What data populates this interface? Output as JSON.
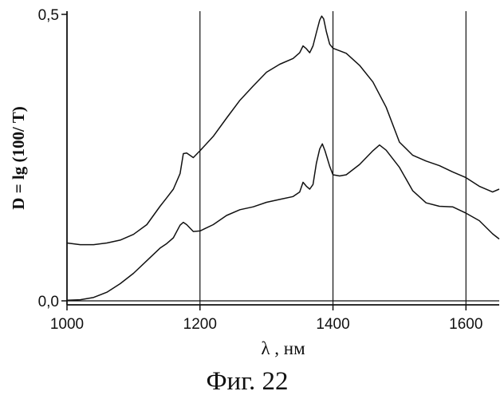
{
  "chart_data": {
    "type": "line",
    "title": "",
    "caption": "Фиг. 22",
    "xlabel": "λ , нм",
    "ylabel": "D = lg (100/ T)",
    "xlim": [
      1000,
      1650
    ],
    "ylim": [
      0,
      0.5
    ],
    "x_ticks": [
      1000,
      1200,
      1400,
      1600
    ],
    "x_tick_labels": [
      "1000",
      "1200",
      "1400",
      "1600"
    ],
    "y_ticks": [
      0,
      0.5
    ],
    "y_tick_labels": [
      "0,0",
      "0,5"
    ],
    "vertical_gridlines": [
      1200,
      1400,
      1600
    ],
    "grid": true,
    "line_color": "#111111",
    "series": [
      {
        "x": [
          1000,
          1020,
          1040,
          1060,
          1080,
          1100,
          1120,
          1140,
          1150,
          1160,
          1170,
          1175,
          1180,
          1190,
          1200,
          1220,
          1240,
          1260,
          1280,
          1300,
          1320,
          1340,
          1350,
          1355,
          1360,
          1365,
          1370,
          1375,
          1380,
          1383,
          1386,
          1390,
          1395,
          1400,
          1420,
          1440,
          1460,
          1480,
          1500,
          1520,
          1540,
          1560,
          1580,
          1600,
          1620,
          1640,
          1650
        ],
        "y": [
          0.101,
          0.098,
          0.098,
          0.101,
          0.106,
          0.116,
          0.133,
          0.165,
          0.18,
          0.195,
          0.222,
          0.257,
          0.258,
          0.25,
          0.262,
          0.287,
          0.319,
          0.35,
          0.375,
          0.399,
          0.413,
          0.423,
          0.433,
          0.445,
          0.44,
          0.433,
          0.445,
          0.468,
          0.49,
          0.497,
          0.492,
          0.47,
          0.448,
          0.441,
          0.432,
          0.411,
          0.382,
          0.338,
          0.277,
          0.254,
          0.244,
          0.236,
          0.225,
          0.215,
          0.2,
          0.19,
          0.195
        ]
      },
      {
        "x": [
          1000,
          1020,
          1040,
          1060,
          1080,
          1100,
          1120,
          1140,
          1150,
          1160,
          1170,
          1175,
          1180,
          1190,
          1200,
          1220,
          1240,
          1260,
          1280,
          1300,
          1320,
          1340,
          1350,
          1355,
          1360,
          1365,
          1370,
          1375,
          1380,
          1384,
          1388,
          1395,
          1400,
          1410,
          1420,
          1440,
          1460,
          1470,
          1480,
          1500,
          1520,
          1540,
          1560,
          1580,
          1600,
          1620,
          1640,
          1650
        ],
        "y": [
          0.001,
          0.002,
          0.006,
          0.015,
          0.03,
          0.048,
          0.07,
          0.092,
          0.1,
          0.11,
          0.132,
          0.137,
          0.133,
          0.121,
          0.122,
          0.133,
          0.149,
          0.159,
          0.164,
          0.172,
          0.177,
          0.182,
          0.19,
          0.207,
          0.2,
          0.195,
          0.203,
          0.24,
          0.265,
          0.274,
          0.262,
          0.235,
          0.22,
          0.218,
          0.22,
          0.238,
          0.262,
          0.272,
          0.263,
          0.233,
          0.192,
          0.171,
          0.165,
          0.164,
          0.153,
          0.14,
          0.117,
          0.108
        ]
      }
    ]
  }
}
